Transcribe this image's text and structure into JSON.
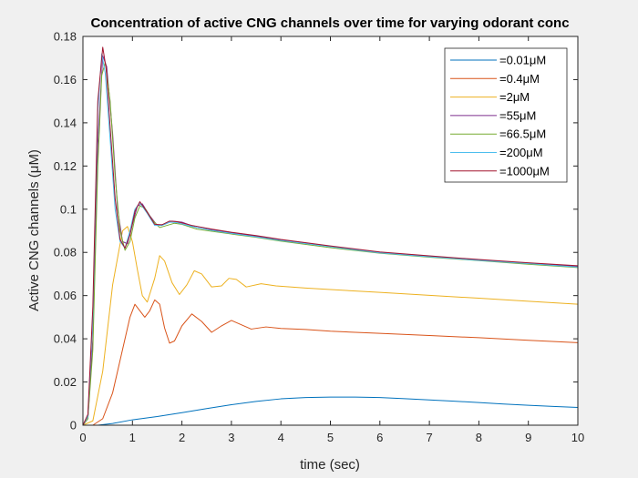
{
  "chart_data": {
    "type": "line",
    "title": "Concentration of active CNG channels over time for varying odorant conc",
    "xlabel": "time (sec)",
    "ylabel": "Active CNG channels (μM)",
    "xlim": [
      0,
      10
    ],
    "ylim": [
      0,
      0.18
    ],
    "xticks": [
      0,
      1,
      2,
      3,
      4,
      5,
      6,
      7,
      8,
      9,
      10
    ],
    "xtick_labels": [
      "0",
      "1",
      "2",
      "3",
      "4",
      "5",
      "6",
      "7",
      "8",
      "9",
      "10"
    ],
    "yticks": [
      0,
      0.02,
      0.04,
      0.06,
      0.08,
      0.1,
      0.12,
      0.14,
      0.16,
      0.18
    ],
    "ytick_labels": [
      "0",
      "0.02",
      "0.04",
      "0.06",
      "0.08",
      "0.1",
      "0.12",
      "0.14",
      "0.16",
      "0.18"
    ],
    "grid": false,
    "legend_position": "top-right",
    "series": [
      {
        "name": "=0.01μM",
        "color": "#0072bd",
        "points": [
          [
            0,
            0
          ],
          [
            0.3,
            0
          ],
          [
            0.6,
            0.0008
          ],
          [
            1,
            0.0025
          ],
          [
            1.5,
            0.004
          ],
          [
            2,
            0.0058
          ],
          [
            2.5,
            0.0077
          ],
          [
            3,
            0.0095
          ],
          [
            3.5,
            0.011
          ],
          [
            4,
            0.0122
          ],
          [
            4.5,
            0.0128
          ],
          [
            5,
            0.013
          ],
          [
            5.5,
            0.013
          ],
          [
            6,
            0.0128
          ],
          [
            6.5,
            0.0123
          ],
          [
            7,
            0.0117
          ],
          [
            7.5,
            0.0111
          ],
          [
            8,
            0.0105
          ],
          [
            8.5,
            0.0098
          ],
          [
            9,
            0.0092
          ],
          [
            9.5,
            0.0087
          ],
          [
            10,
            0.0082
          ]
        ]
      },
      {
        "name": "=0.4μM",
        "color": "#d95319",
        "points": [
          [
            0,
            0
          ],
          [
            0.2,
            0
          ],
          [
            0.4,
            0.003
          ],
          [
            0.6,
            0.015
          ],
          [
            0.8,
            0.035
          ],
          [
            0.95,
            0.05
          ],
          [
            1.05,
            0.056
          ],
          [
            1.15,
            0.053
          ],
          [
            1.25,
            0.05
          ],
          [
            1.35,
            0.053
          ],
          [
            1.45,
            0.058
          ],
          [
            1.55,
            0.056
          ],
          [
            1.65,
            0.045
          ],
          [
            1.75,
            0.038
          ],
          [
            1.85,
            0.039
          ],
          [
            2,
            0.046
          ],
          [
            2.2,
            0.0515
          ],
          [
            2.4,
            0.048
          ],
          [
            2.6,
            0.043
          ],
          [
            2.8,
            0.046
          ],
          [
            3,
            0.0485
          ],
          [
            3.2,
            0.0465
          ],
          [
            3.4,
            0.0445
          ],
          [
            3.7,
            0.0455
          ],
          [
            4,
            0.0448
          ],
          [
            4.5,
            0.0443
          ],
          [
            5,
            0.0435
          ],
          [
            6,
            0.0425
          ],
          [
            7,
            0.0415
          ],
          [
            8,
            0.0405
          ],
          [
            9,
            0.0393
          ],
          [
            10,
            0.0382
          ]
        ]
      },
      {
        "name": "=2μM",
        "color": "#edb120",
        "points": [
          [
            0,
            0
          ],
          [
            0.2,
            0.002
          ],
          [
            0.4,
            0.025
          ],
          [
            0.6,
            0.065
          ],
          [
            0.8,
            0.09
          ],
          [
            0.9,
            0.092
          ],
          [
            1,
            0.085
          ],
          [
            1.1,
            0.072
          ],
          [
            1.2,
            0.06
          ],
          [
            1.3,
            0.057
          ],
          [
            1.45,
            0.068
          ],
          [
            1.55,
            0.0785
          ],
          [
            1.65,
            0.076
          ],
          [
            1.8,
            0.066
          ],
          [
            1.95,
            0.0605
          ],
          [
            2.1,
            0.065
          ],
          [
            2.25,
            0.0715
          ],
          [
            2.4,
            0.07
          ],
          [
            2.6,
            0.064
          ],
          [
            2.8,
            0.0645
          ],
          [
            2.95,
            0.068
          ],
          [
            3.1,
            0.0675
          ],
          [
            3.3,
            0.064
          ],
          [
            3.6,
            0.0655
          ],
          [
            3.9,
            0.0645
          ],
          [
            4.5,
            0.0635
          ],
          [
            5,
            0.0628
          ],
          [
            6,
            0.0615
          ],
          [
            7,
            0.0601
          ],
          [
            8,
            0.0588
          ],
          [
            9,
            0.0574
          ],
          [
            10,
            0.056
          ]
        ]
      },
      {
        "name": "=55μM",
        "color": "#7e2f8e",
        "points": [
          [
            0,
            0
          ],
          [
            0.1,
            0.003
          ],
          [
            0.2,
            0.04
          ],
          [
            0.3,
            0.13
          ],
          [
            0.4,
            0.171
          ],
          [
            0.48,
            0.166
          ],
          [
            0.6,
            0.135
          ],
          [
            0.7,
            0.1
          ],
          [
            0.8,
            0.085
          ],
          [
            0.9,
            0.084
          ],
          [
            1,
            0.093
          ],
          [
            1.1,
            0.1015
          ],
          [
            1.2,
            0.1025
          ],
          [
            1.35,
            0.097
          ],
          [
            1.5,
            0.0925
          ],
          [
            1.65,
            0.093
          ],
          [
            1.8,
            0.0945
          ],
          [
            2,
            0.094
          ],
          [
            2.3,
            0.0915
          ],
          [
            2.6,
            0.0905
          ],
          [
            3,
            0.089
          ],
          [
            3.5,
            0.0875
          ],
          [
            4,
            0.0858
          ],
          [
            5,
            0.0828
          ],
          [
            6,
            0.08
          ],
          [
            7,
            0.0782
          ],
          [
            8,
            0.0765
          ],
          [
            9,
            0.075
          ],
          [
            10,
            0.0735
          ]
        ]
      },
      {
        "name": "=66.5μM",
        "color": "#77ac30",
        "points": [
          [
            0,
            0
          ],
          [
            0.1,
            0.003
          ],
          [
            0.2,
            0.035
          ],
          [
            0.3,
            0.12
          ],
          [
            0.38,
            0.162
          ],
          [
            0.45,
            0.168
          ],
          [
            0.55,
            0.15
          ],
          [
            0.65,
            0.115
          ],
          [
            0.75,
            0.09
          ],
          [
            0.85,
            0.081
          ],
          [
            0.95,
            0.085
          ],
          [
            1.05,
            0.096
          ],
          [
            1.15,
            0.1015
          ],
          [
            1.25,
            0.1005
          ],
          [
            1.4,
            0.095
          ],
          [
            1.55,
            0.0915
          ],
          [
            1.7,
            0.0925
          ],
          [
            1.85,
            0.0935
          ],
          [
            2,
            0.093
          ],
          [
            2.3,
            0.0908
          ],
          [
            2.6,
            0.0898
          ],
          [
            3,
            0.0885
          ],
          [
            3.5,
            0.087
          ],
          [
            4,
            0.0852
          ],
          [
            5,
            0.0822
          ],
          [
            6,
            0.0796
          ],
          [
            7,
            0.0778
          ],
          [
            8,
            0.0762
          ],
          [
            9,
            0.0745
          ],
          [
            10,
            0.073
          ]
        ]
      },
      {
        "name": "=200μM",
        "color": "#4dbeee",
        "points": [
          [
            0,
            0
          ],
          [
            0.1,
            0.004
          ],
          [
            0.2,
            0.05
          ],
          [
            0.3,
            0.145
          ],
          [
            0.38,
            0.172
          ],
          [
            0.45,
            0.163
          ],
          [
            0.55,
            0.132
          ],
          [
            0.65,
            0.1
          ],
          [
            0.75,
            0.085
          ],
          [
            0.85,
            0.082
          ],
          [
            0.95,
            0.09
          ],
          [
            1.05,
            0.1
          ],
          [
            1.15,
            0.103
          ],
          [
            1.3,
            0.098
          ],
          [
            1.45,
            0.0925
          ],
          [
            1.6,
            0.0925
          ],
          [
            1.75,
            0.094
          ],
          [
            1.9,
            0.0938
          ],
          [
            2.2,
            0.092
          ],
          [
            2.6,
            0.0902
          ],
          [
            3,
            0.0888
          ],
          [
            3.5,
            0.0872
          ],
          [
            4,
            0.0855
          ],
          [
            5,
            0.0826
          ],
          [
            6,
            0.0798
          ],
          [
            7,
            0.078
          ],
          [
            8,
            0.0763
          ],
          [
            9,
            0.0748
          ],
          [
            10,
            0.0732
          ]
        ]
      },
      {
        "name": "=1000μM",
        "color": "#a2142f",
        "points": [
          [
            0,
            0
          ],
          [
            0.1,
            0.005
          ],
          [
            0.2,
            0.055
          ],
          [
            0.3,
            0.15
          ],
          [
            0.4,
            0.175
          ],
          [
            0.47,
            0.165
          ],
          [
            0.55,
            0.138
          ],
          [
            0.65,
            0.105
          ],
          [
            0.75,
            0.086
          ],
          [
            0.85,
            0.082
          ],
          [
            0.95,
            0.088
          ],
          [
            1.05,
            0.099
          ],
          [
            1.15,
            0.1035
          ],
          [
            1.3,
            0.0985
          ],
          [
            1.45,
            0.093
          ],
          [
            1.6,
            0.0928
          ],
          [
            1.75,
            0.0945
          ],
          [
            1.9,
            0.0942
          ],
          [
            2.2,
            0.0925
          ],
          [
            2.6,
            0.0908
          ],
          [
            3,
            0.0893
          ],
          [
            3.5,
            0.0878
          ],
          [
            4,
            0.086
          ],
          [
            5,
            0.083
          ],
          [
            6,
            0.0802
          ],
          [
            7,
            0.0784
          ],
          [
            8,
            0.0767
          ],
          [
            9,
            0.0752
          ],
          [
            10,
            0.0738
          ]
        ]
      }
    ]
  }
}
